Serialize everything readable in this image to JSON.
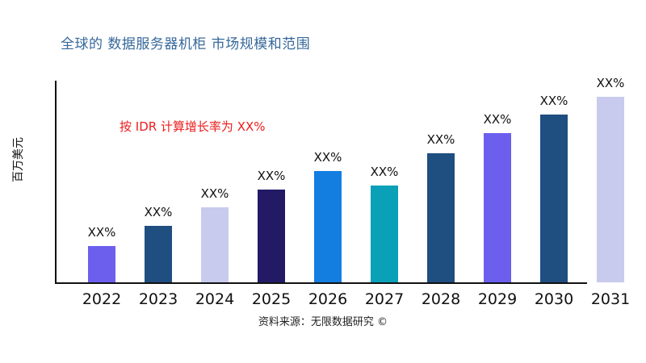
{
  "chart_data": {
    "type": "bar",
    "title": "全球的 数据服务器机柜 市场规模和范围",
    "ylabel": "百万美元",
    "xlabel": "",
    "annotation": "按 IDR 计算增长率为 XX%",
    "source": "资料来源：无限数据研究 ©",
    "categories": [
      "2022",
      "2023",
      "2024",
      "2025",
      "2026",
      "2027",
      "2028",
      "2029",
      "2030",
      "2031"
    ],
    "values": [
      18,
      28,
      37,
      46,
      55,
      48,
      64,
      74,
      83,
      92
    ],
    "bar_labels": [
      "XX%",
      "XX%",
      "XX%",
      "XX%",
      "XX%",
      "XX%",
      "XX%",
      "XX%",
      "XX%",
      "XX%"
    ],
    "bar_colors": [
      "#6C5FEE",
      "#1F4E80",
      "#C8CAEE",
      "#231A66",
      "#137EE0",
      "#09A0B8",
      "#1F4E80",
      "#6C5FEE",
      "#1F4E80",
      "#C8CAEE"
    ],
    "ylim": [
      0,
      100
    ],
    "grid": false,
    "legend": false,
    "colors": {
      "title": "#36689B",
      "annotation": "#ED1C1C",
      "axis": "#111111",
      "labels": "#111111"
    }
  }
}
